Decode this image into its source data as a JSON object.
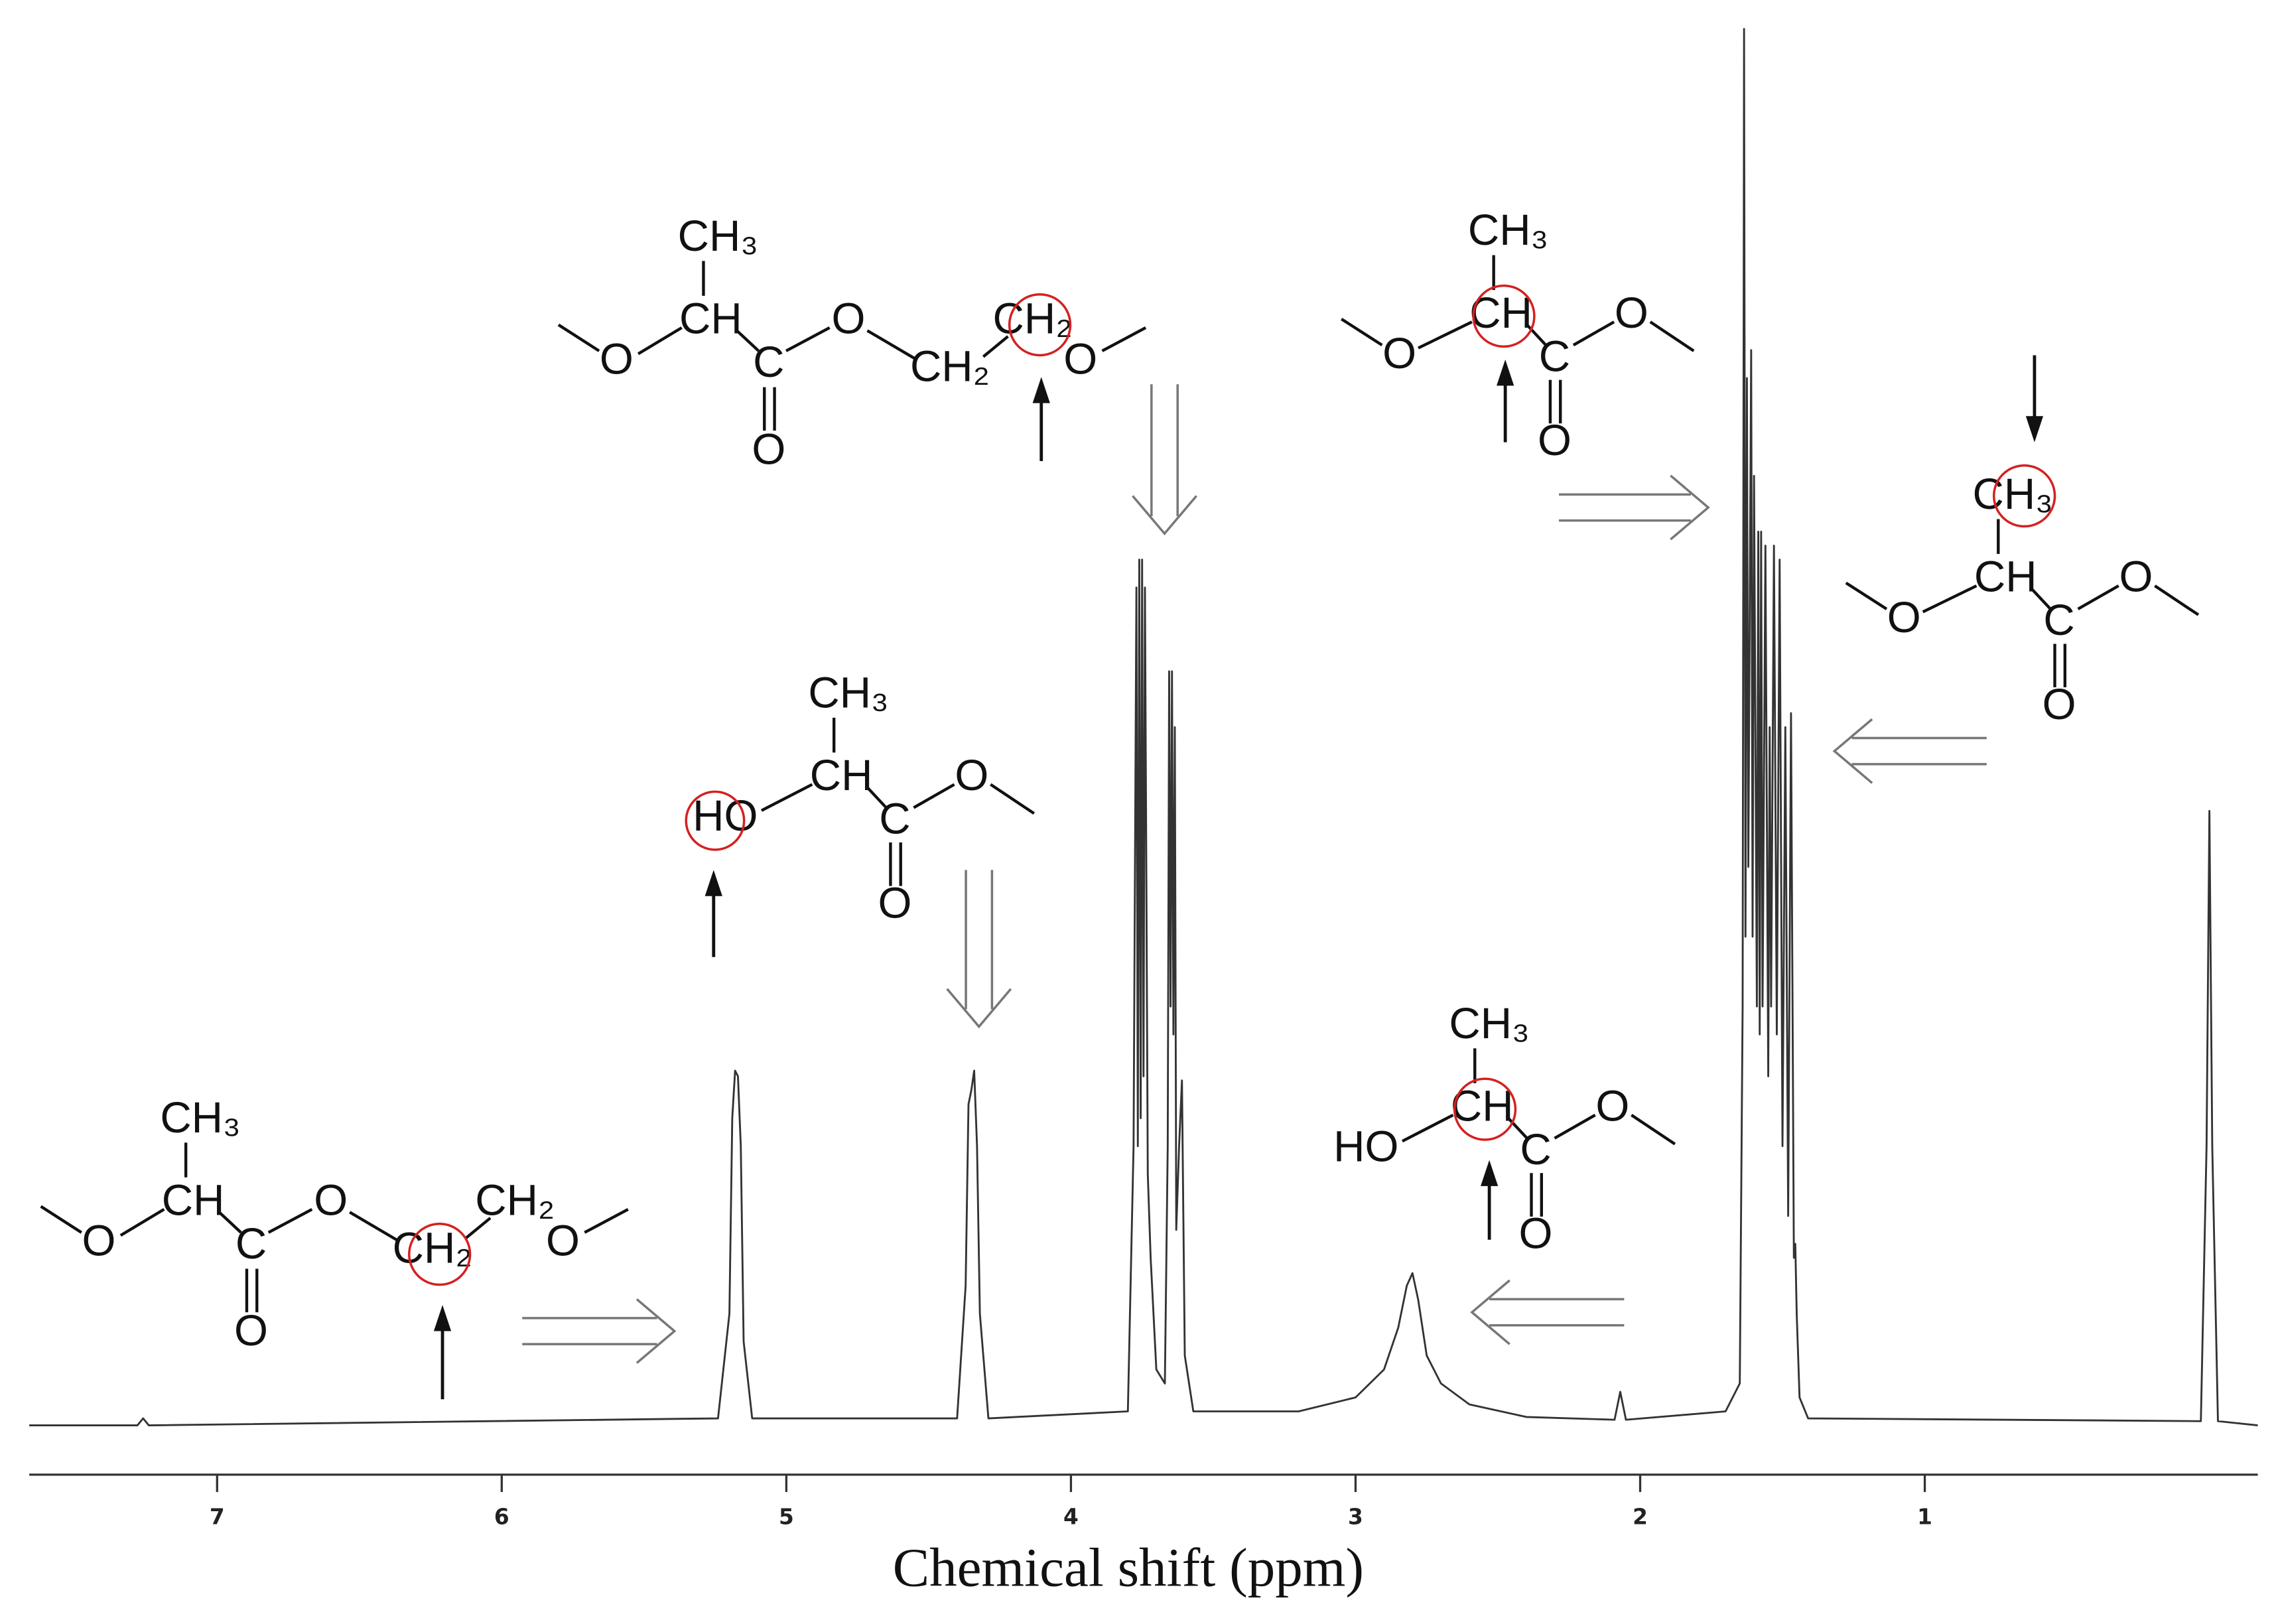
{
  "chart_data": {
    "type": "line",
    "x_label": "Chemical shift (ppm)",
    "color": "#333333",
    "x": [
      7.66,
      7.28,
      7.26,
      7.24,
      5.24,
      5.2,
      5.19,
      5.18,
      5.17,
      5.16,
      5.15,
      5.12,
      4.4,
      4.37,
      4.36,
      4.35,
      4.34,
      4.33,
      4.32,
      4.29,
      3.8,
      3.78,
      3.77,
      3.765,
      3.76,
      3.755,
      3.75,
      3.745,
      3.74,
      3.73,
      3.72,
      3.7,
      3.67,
      3.66,
      3.655,
      3.65,
      3.645,
      3.64,
      3.635,
      3.63,
      3.62,
      3.61,
      3.6,
      3.57,
      3.2,
      3.0,
      2.9,
      2.85,
      2.82,
      2.8,
      2.78,
      2.75,
      2.7,
      2.6,
      2.4,
      2.09,
      2.07,
      2.05,
      1.7,
      1.65,
      1.64,
      1.635,
      1.63,
      1.625,
      1.62,
      1.61,
      1.605,
      1.6,
      1.59,
      1.585,
      1.58,
      1.575,
      1.57,
      1.56,
      1.55,
      1.545,
      1.54,
      1.53,
      1.52,
      1.51,
      1.5,
      1.49,
      1.48,
      1.47,
      1.46,
      1.455,
      1.45,
      1.44,
      1.41,
      0.03,
      0.01,
      0.0,
      -0.01,
      -0.03,
      -0.17
    ],
    "values": [
      0,
      0,
      0.5,
      0,
      0.5,
      8,
      22,
      25.4,
      25,
      20,
      6,
      0.5,
      0.5,
      10,
      23,
      24,
      25.4,
      20,
      8,
      0.5,
      1,
      20,
      60,
      20,
      62,
      22,
      62,
      25,
      60,
      18,
      12,
      4,
      3,
      20,
      54,
      30,
      54,
      28,
      50,
      14,
      20,
      24.7,
      5,
      1,
      1,
      2,
      4,
      7,
      10,
      10.9,
      9,
      5,
      3,
      1.5,
      0.6,
      0.4,
      2.4,
      0.4,
      1,
      3,
      30,
      100,
      35,
      75,
      40,
      77,
      35,
      68,
      30,
      64,
      28,
      64,
      30,
      63,
      25,
      50,
      30,
      63,
      28,
      62,
      20,
      50,
      15,
      51,
      12,
      13,
      8,
      2,
      0.5,
      0.3,
      20,
      44,
      20,
      0.3,
      0
    ],
    "xlim": [
      7.66,
      -0.17
    ],
    "ylim": [
      0,
      100
    ],
    "xticks": [
      1,
      2,
      3,
      4,
      5,
      6,
      7
    ]
  },
  "structures": [
    {
      "atoms": [
        "CH₃",
        "CH",
        "O",
        "C",
        "O",
        "O",
        "CH₂",
        "CH₂",
        "O"
      ]
    },
    {
      "atoms": [
        "CH₃",
        "CH",
        "O",
        "C",
        "O",
        "O",
        "CH₂",
        "CH₂",
        "O"
      ]
    },
    {
      "atoms": [
        "CH₃",
        "CH",
        "O",
        "C",
        "O",
        "O"
      ]
    },
    {
      "atoms": [
        "CH₃",
        "CH",
        "O",
        "C",
        "O",
        "O"
      ]
    },
    {
      "atoms": [
        "CH₃",
        "CH",
        "HO",
        "C",
        "O",
        "O"
      ]
    },
    {
      "atoms": [
        "CH₃",
        "CH",
        "HO",
        "C",
        "O",
        "O"
      ]
    }
  ]
}
